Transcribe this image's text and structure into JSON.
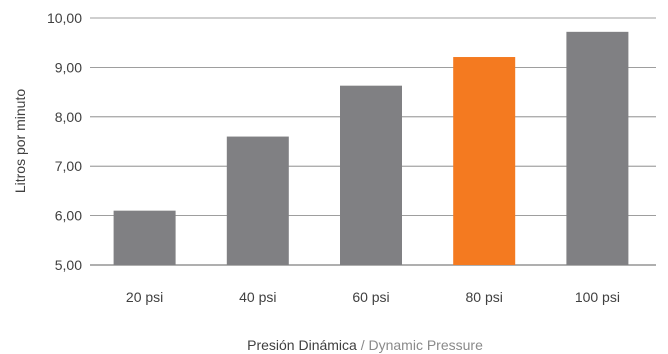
{
  "chart_data": {
    "type": "bar",
    "categories": [
      "20 psi",
      "40 psi",
      "60 psi",
      "80 psi",
      "100 psi"
    ],
    "values": [
      6.1,
      7.6,
      8.63,
      9.21,
      9.72
    ],
    "ylabel": "Litros por minuto",
    "xlabel_main": "Presión Dinámica",
    "xlabel_separator": " / ",
    "xlabel_sub": "Dynamic Pressure",
    "ylim": [
      5,
      10
    ],
    "yticks": [
      "5,00",
      "6,00",
      "7,00",
      "8,00",
      "9,00",
      "10,00"
    ],
    "ytick_values": [
      5,
      6,
      7,
      8,
      9,
      10
    ],
    "grid": true,
    "colors": {
      "default_bar": "#808083",
      "highlight_bar": "#f47a20",
      "gridline": "#7f7f7f"
    },
    "highlight_index": 3
  }
}
